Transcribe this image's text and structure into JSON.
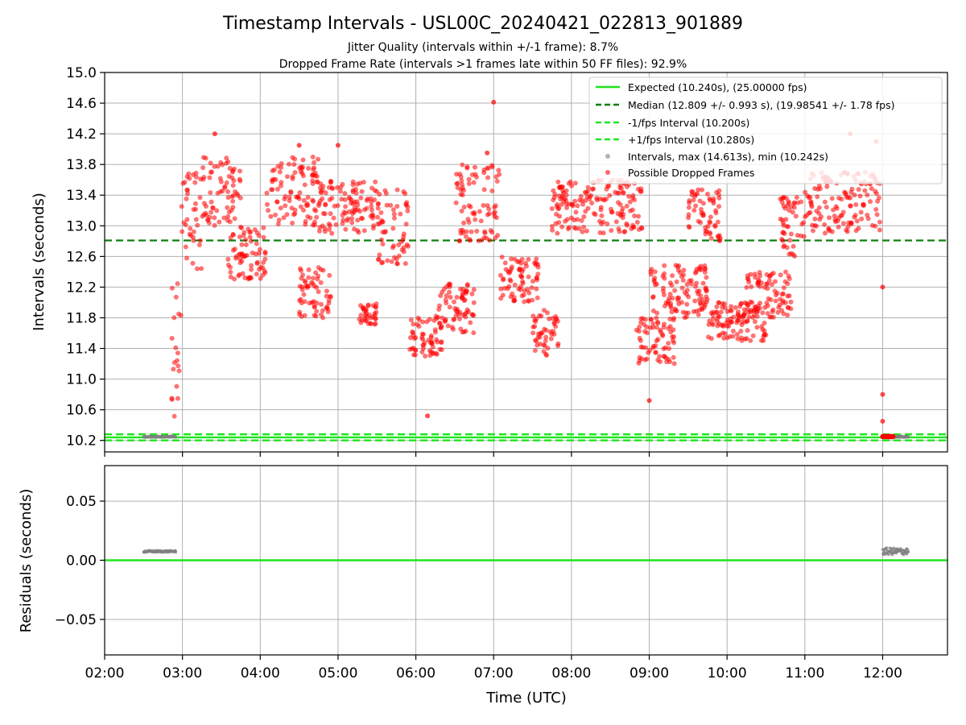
{
  "figure": {
    "title": "Timestamp Intervals - USL00C_20240421_022813_901889",
    "subtitle_1": "Jitter Quality (intervals within +/-1 frame): 8.7%",
    "subtitle_2": "Dropped Frame Rate (intervals >1 frames late within 50 FF files): 92.9%",
    "xlabel": "Time (UTC)"
  },
  "colors": {
    "expected": "#1ee61e",
    "median": "#0f7f0f",
    "interval_band": "#1ee61e",
    "intervals": "#808080",
    "dropped": "#ff0000",
    "grid": "#b0b0b0"
  },
  "chart_data": [
    {
      "type": "scatter",
      "ylabel": "Intervals (seconds)",
      "xlim": [
        "02:00",
        "12:50"
      ],
      "ylim": [
        10.05,
        15.0
      ],
      "grid": true,
      "legend_placement": "top-right",
      "x_ticks": [
        "02:00",
        "03:00",
        "04:00",
        "05:00",
        "06:00",
        "07:00",
        "08:00",
        "09:00",
        "10:00",
        "11:00",
        "12:00"
      ],
      "y_ticks": [
        "10.2",
        "10.6",
        "11.0",
        "11.4",
        "11.8",
        "12.2",
        "12.6",
        "13.0",
        "13.4",
        "13.8",
        "14.2",
        "14.6",
        "15.0"
      ],
      "y_tick_values": [
        10.2,
        10.6,
        11.0,
        11.4,
        11.8,
        12.2,
        12.6,
        13.0,
        13.4,
        13.8,
        14.2,
        14.6,
        15.0
      ],
      "expected": 10.24,
      "median": 12.809,
      "minus_fps": 10.2,
      "plus_fps": 10.28,
      "legend": [
        "Expected (10.240s), (25.00000 fps)",
        "Median (12.809 +/- 0.993 s), (19.98541 +/- 1.78 fps)",
        "-1/fps Interval (10.200s)",
        "+1/fps Interval (10.280s)",
        "Intervals, max (14.613s), min (10.242s)",
        "Possible Dropped Frames"
      ],
      "gray_segments": [
        {
          "start": "02:30",
          "end": "02:55",
          "value": 10.248
        },
        {
          "start": "12:00",
          "end": "12:20",
          "value": 10.248
        }
      ],
      "dropped_segments": [
        {
          "start": "02:51",
          "end": "02:59",
          "from": 10.5,
          "to": 12.4
        },
        {
          "start": "02:59",
          "end": "03:15",
          "from": 12.4,
          "to": 13.7
        },
        {
          "start": "03:15",
          "end": "03:45",
          "from": 13.0,
          "to": 13.9
        },
        {
          "start": "03:35",
          "end": "04:05",
          "from": 12.3,
          "to": 13.0
        },
        {
          "start": "04:05",
          "end": "04:45",
          "from": 13.0,
          "to": 13.9
        },
        {
          "start": "04:30",
          "end": "04:55",
          "from": 11.8,
          "to": 12.5
        },
        {
          "start": "04:45",
          "end": "05:30",
          "from": 12.9,
          "to": 13.6
        },
        {
          "start": "05:15",
          "end": "05:30",
          "from": 11.7,
          "to": 12.0
        },
        {
          "start": "05:30",
          "end": "05:55",
          "from": 12.5,
          "to": 13.5
        },
        {
          "start": "05:55",
          "end": "06:20",
          "from": 11.3,
          "to": 11.8
        },
        {
          "start": "06:15",
          "end": "06:45",
          "from": 11.6,
          "to": 12.3
        },
        {
          "start": "06:30",
          "end": "07:05",
          "from": 12.8,
          "to": 13.8
        },
        {
          "start": "07:05",
          "end": "07:35",
          "from": 12.0,
          "to": 12.6
        },
        {
          "start": "07:30",
          "end": "07:50",
          "from": 11.3,
          "to": 11.9
        },
        {
          "start": "07:45",
          "end": "08:55",
          "from": 12.9,
          "to": 13.6
        },
        {
          "start": "08:50",
          "end": "09:20",
          "from": 11.2,
          "to": 11.8
        },
        {
          "start": "09:00",
          "end": "09:45",
          "from": 11.8,
          "to": 12.5
        },
        {
          "start": "09:30",
          "end": "09:55",
          "from": 12.8,
          "to": 13.5
        },
        {
          "start": "09:45",
          "end": "10:30",
          "from": 11.5,
          "to": 12.0
        },
        {
          "start": "10:15",
          "end": "10:50",
          "from": 11.8,
          "to": 12.4
        },
        {
          "start": "10:40",
          "end": "11:00",
          "from": 12.6,
          "to": 13.4
        },
        {
          "start": "11:00",
          "end": "11:58",
          "from": 12.9,
          "to": 13.7
        }
      ],
      "outliers": [
        {
          "x": "03:25",
          "y": 14.2
        },
        {
          "x": "06:09",
          "y": 10.52
        },
        {
          "x": "07:00",
          "y": 14.613
        },
        {
          "x": "06:55",
          "y": 13.95
        },
        {
          "x": "09:00",
          "y": 10.72
        },
        {
          "x": "12:00",
          "y": 10.45
        },
        {
          "x": "12:00",
          "y": 10.8
        },
        {
          "x": "12:00",
          "y": 12.2
        },
        {
          "x": "11:55",
          "y": 14.1
        },
        {
          "x": "11:35",
          "y": 14.2
        },
        {
          "x": "04:30",
          "y": 14.05
        },
        {
          "x": "04:40",
          "y": 12.0
        },
        {
          "x": "05:00",
          "y": 14.05
        }
      ],
      "dropped_tail": {
        "start": "12:00",
        "end": "12:08",
        "value": 10.25
      }
    },
    {
      "type": "scatter",
      "ylabel": "Residuals (seconds)",
      "xlim": [
        "02:00",
        "12:50"
      ],
      "ylim": [
        -0.08,
        0.08
      ],
      "grid": true,
      "y_ticks": [
        "0.05",
        "0.00",
        "−0.05"
      ],
      "y_tick_values": [
        0.05,
        0.0,
        -0.05
      ],
      "zero_line": 0.0,
      "residual_segments": [
        {
          "start": "02:30",
          "end": "02:55",
          "value": 0.0075
        },
        {
          "start": "12:00",
          "end": "12:20",
          "value": 0.0075
        }
      ]
    }
  ]
}
